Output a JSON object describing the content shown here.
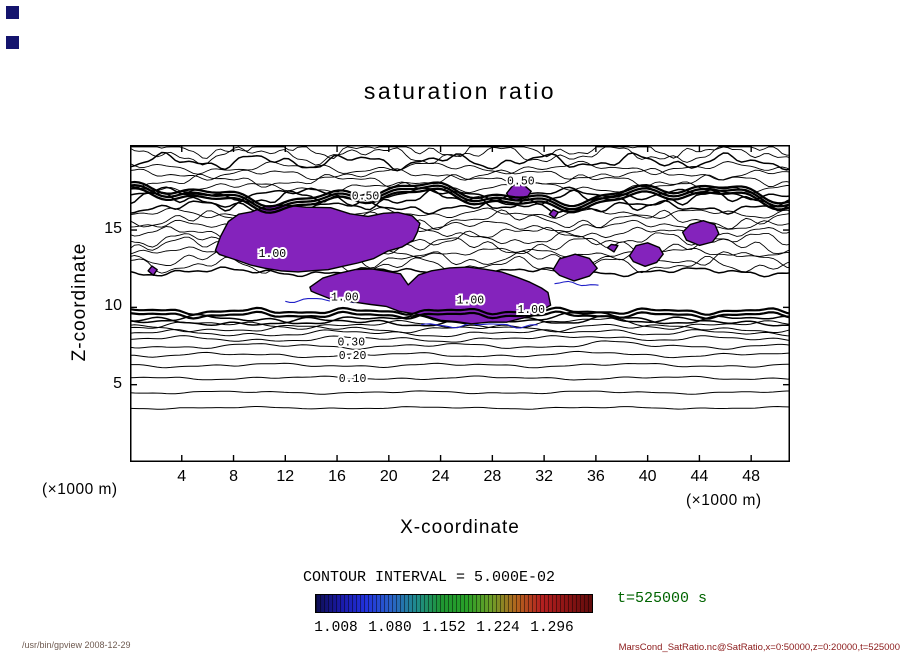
{
  "window": {
    "corner_marker_color": "#14146e"
  },
  "title": "saturation ratio",
  "axes": {
    "x_label": "X-coordinate",
    "z_label": "Z-coordinate",
    "x_units_left": "(×1000 m)",
    "x_units_right": "(×1000 m)"
  },
  "annotations": {
    "contour_interval_label": "CONTOUR INTERVAL = 5.000E-02",
    "time_label": "t=525000 s"
  },
  "footer": {
    "left": "/usr/bin/gpview  2008-12-29",
    "right": "MarsCond_SatRatio.nc@SatRatio,x=0:50000,z=0:20000,t=525000"
  },
  "chart_data": {
    "type": "heatmap",
    "variant": "filled-contour-plot",
    "title": "saturation ratio",
    "xlabel": "X-coordinate",
    "ylabel": "Z-coordinate",
    "x_units": "(×1000 m)",
    "y_units": "(×1000 m)",
    "xlim": [
      0,
      51
    ],
    "ylim": [
      0,
      20.5
    ],
    "x_ticks": [
      4,
      8,
      12,
      16,
      20,
      24,
      28,
      32,
      36,
      40,
      44,
      48
    ],
    "y_ticks": [
      5,
      10,
      15
    ],
    "contour_interval": 0.05,
    "time": "t=525000 s",
    "fill_color": "#8423bc",
    "blue_contour_color": "#2020c8",
    "lower_levels": [
      3.5,
      4.5,
      5.43,
      6.25,
      6.92,
      7.5,
      7.95,
      8.32,
      8.62,
      8.86,
      9.05,
      9.2
    ],
    "turbulent_band": {
      "z_min": 12.3,
      "z_step": 0.42,
      "lines": 20
    },
    "thick_bands": {
      "upper": [
        16.95,
        17.15,
        17.35
      ],
      "lower": [
        9.5,
        9.75
      ]
    },
    "blue_lines": [
      {
        "x0": 12.0,
        "x1": 18.0,
        "z": 10.45
      },
      {
        "x0": 22.5,
        "x1": 31.5,
        "z": 8.85
      },
      {
        "x0": 32.8,
        "x1": 36.2,
        "z": 11.5
      }
    ],
    "contour_labels": [
      {
        "text": "0.50",
        "x": 18.2,
        "z": 17.25
      },
      {
        "text": "0.50",
        "x": 30.2,
        "z": 18.2
      },
      {
        "text": "1.00",
        "x": 11.0,
        "z": 13.5
      },
      {
        "text": "1.00",
        "x": 16.6,
        "z": 10.7
      },
      {
        "text": "1.00",
        "x": 26.3,
        "z": 10.5
      },
      {
        "text": "1.00",
        "x": 31.0,
        "z": 9.9
      },
      {
        "text": "0.30",
        "x": 17.1,
        "z": 7.8
      },
      {
        "text": "0.20",
        "x": 17.2,
        "z": 6.92
      },
      {
        "text": "0.10",
        "x": 17.2,
        "z": 5.43
      }
    ],
    "filled_regions": [
      [
        [
          6.6,
          13.7
        ],
        [
          7.0,
          14.6
        ],
        [
          7.6,
          15.5
        ],
        [
          8.4,
          16.0
        ],
        [
          9.4,
          16.2
        ],
        [
          10.6,
          16.5
        ],
        [
          12.0,
          16.6
        ],
        [
          13.6,
          16.5
        ],
        [
          15.5,
          16.4
        ],
        [
          17.0,
          16.1
        ],
        [
          18.4,
          15.9
        ],
        [
          19.6,
          16.15
        ],
        [
          20.7,
          16.2
        ],
        [
          21.8,
          15.9
        ],
        [
          22.4,
          15.4
        ],
        [
          22.2,
          14.8
        ],
        [
          21.9,
          14.3
        ],
        [
          21.0,
          13.9
        ],
        [
          19.9,
          13.6
        ],
        [
          18.8,
          13.2
        ],
        [
          17.6,
          12.9
        ],
        [
          16.4,
          12.7
        ],
        [
          15.3,
          12.5
        ],
        [
          14.1,
          12.4
        ],
        [
          13.0,
          12.3
        ],
        [
          11.7,
          12.35
        ],
        [
          10.4,
          12.5
        ],
        [
          9.3,
          12.7
        ],
        [
          8.3,
          13.0
        ],
        [
          7.5,
          13.3
        ],
        [
          6.9,
          13.4
        ]
      ],
      [
        [
          13.9,
          11.3
        ],
        [
          14.9,
          11.9
        ],
        [
          16.1,
          12.2
        ],
        [
          17.4,
          12.45
        ],
        [
          18.7,
          12.5
        ],
        [
          19.9,
          12.35
        ],
        [
          20.9,
          12.2
        ],
        [
          21.5,
          11.5
        ],
        [
          22.3,
          12.1
        ],
        [
          23.3,
          12.4
        ],
        [
          24.7,
          12.55
        ],
        [
          26.1,
          12.6
        ],
        [
          27.4,
          12.45
        ],
        [
          28.7,
          12.3
        ],
        [
          29.9,
          12.0
        ],
        [
          30.9,
          11.7
        ],
        [
          31.8,
          11.3
        ],
        [
          32.3,
          10.9
        ],
        [
          32.5,
          10.2
        ],
        [
          31.9,
          9.8
        ],
        [
          31.4,
          9.5
        ],
        [
          30.3,
          9.3
        ],
        [
          29.1,
          9.1
        ],
        [
          27.8,
          9.0
        ],
        [
          26.4,
          9.0
        ],
        [
          25.2,
          9.1
        ],
        [
          24.0,
          9.2
        ],
        [
          22.9,
          9.4
        ],
        [
          21.8,
          9.6
        ],
        [
          20.8,
          9.8
        ],
        [
          19.8,
          10.0
        ],
        [
          18.6,
          10.15
        ],
        [
          17.5,
          10.3
        ],
        [
          16.5,
          10.4
        ],
        [
          15.6,
          10.5
        ],
        [
          14.9,
          10.7
        ],
        [
          14.4,
          10.9
        ],
        [
          14.0,
          11.1
        ]
      ],
      [
        [
          32.7,
          12.5
        ],
        [
          33.2,
          13.2
        ],
        [
          34.4,
          13.5
        ],
        [
          35.5,
          13.2
        ],
        [
          36.1,
          12.5
        ],
        [
          35.5,
          12.0
        ],
        [
          34.3,
          11.7
        ],
        [
          33.2,
          12.0
        ]
      ],
      [
        [
          38.6,
          13.4
        ],
        [
          39.1,
          14.0
        ],
        [
          40.0,
          14.2
        ],
        [
          40.9,
          13.9
        ],
        [
          41.2,
          13.4
        ],
        [
          40.7,
          12.9
        ],
        [
          39.8,
          12.7
        ],
        [
          38.9,
          12.9
        ]
      ],
      [
        [
          42.7,
          14.8
        ],
        [
          43.3,
          15.4
        ],
        [
          44.3,
          15.6
        ],
        [
          45.2,
          15.3
        ],
        [
          45.5,
          14.7
        ],
        [
          45.0,
          14.2
        ],
        [
          44.0,
          14.0
        ],
        [
          43.0,
          14.3
        ]
      ],
      [
        [
          29.1,
          17.4
        ],
        [
          29.6,
          17.9
        ],
        [
          30.4,
          17.9
        ],
        [
          31.0,
          17.5
        ],
        [
          30.7,
          17.1
        ],
        [
          29.8,
          16.9
        ],
        [
          29.3,
          17.1
        ]
      ],
      [
        [
          1.4,
          12.3
        ],
        [
          1.7,
          12.6
        ],
        [
          2.1,
          12.4
        ],
        [
          1.8,
          12.1
        ]
      ],
      [
        [
          32.4,
          16.0
        ],
        [
          32.7,
          16.3
        ],
        [
          33.1,
          16.1
        ],
        [
          32.8,
          15.8
        ]
      ],
      [
        [
          36.9,
          13.8
        ],
        [
          37.2,
          14.1
        ],
        [
          37.7,
          13.95
        ],
        [
          37.4,
          13.6
        ]
      ]
    ],
    "colorbar": {
      "ticks": [
        "1.008",
        "1.080",
        "1.152",
        "1.224",
        "1.296"
      ],
      "gradient": [
        "#0e0e52",
        "#1a1aa8",
        "#2233dd",
        "#2a62c8",
        "#1f8c8c",
        "#1f9632",
        "#28a028",
        "#6e9e28",
        "#b4641e",
        "#b42020",
        "#8c1414",
        "#600c0c"
      ]
    }
  }
}
